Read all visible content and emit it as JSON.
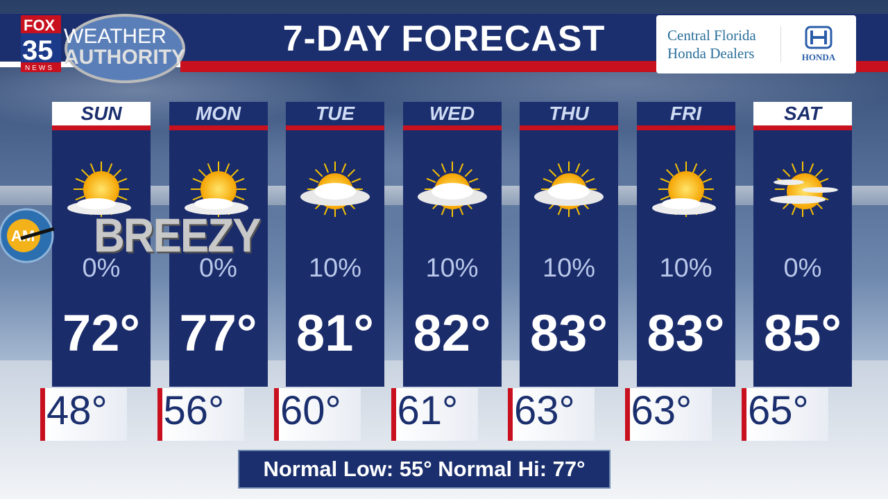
{
  "header": {
    "title": "7-DAY FORECAST",
    "logo_text": [
      "FOX",
      "35",
      "NEWS",
      "WEATHER",
      "AUTHORITY"
    ]
  },
  "sponsor": {
    "line1": "Central Florida",
    "line2": "Honda Dealers",
    "brand": "HONDA"
  },
  "badge": {
    "text": "BREEZY",
    "am_logo_text": "AM"
  },
  "colors": {
    "navy": "#1b2f6e",
    "red": "#c8101e",
    "highlight_day_bg": "#ffffff"
  },
  "days": [
    {
      "name": "SUN",
      "highlight": true,
      "icon": "mostly-sunny-icon",
      "precip": "0%",
      "high": "72°",
      "low": "48°"
    },
    {
      "name": "MON",
      "highlight": false,
      "icon": "mostly-sunny-icon",
      "precip": "0%",
      "high": "77°",
      "low": "56°"
    },
    {
      "name": "TUE",
      "highlight": false,
      "icon": "partly-cloudy-icon",
      "precip": "10%",
      "high": "81°",
      "low": "60°"
    },
    {
      "name": "WED",
      "highlight": false,
      "icon": "partly-cloudy-icon",
      "precip": "10%",
      "high": "82°",
      "low": "61°"
    },
    {
      "name": "THU",
      "highlight": false,
      "icon": "partly-cloudy-icon",
      "precip": "10%",
      "high": "83°",
      "low": "63°"
    },
    {
      "name": "FRI",
      "highlight": false,
      "icon": "mostly-sunny-icon",
      "precip": "10%",
      "high": "83°",
      "low": "63°"
    },
    {
      "name": "SAT",
      "highlight": true,
      "icon": "hazy-sun-icon",
      "precip": "0%",
      "high": "85°",
      "low": "65°"
    }
  ],
  "normals": {
    "text": "Normal Low: 55° Normal Hi: 77°"
  }
}
